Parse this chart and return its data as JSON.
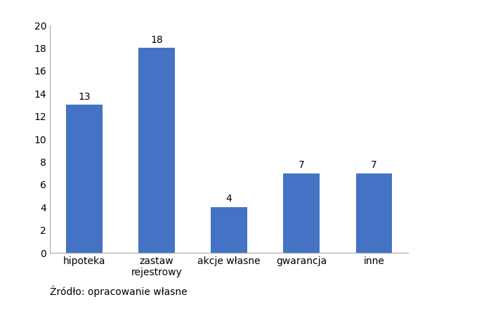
{
  "categories": [
    "hipoteka",
    "zastaw\nrejestrowy",
    "akcje własne",
    "gwarancja",
    "inne"
  ],
  "values": [
    13,
    18,
    4,
    7,
    7
  ],
  "bar_color": "#4472C4",
  "ylim": [
    0,
    20
  ],
  "yticks": [
    0,
    2,
    4,
    6,
    8,
    10,
    12,
    14,
    16,
    18,
    20
  ],
  "value_label_fontsize": 10,
  "tick_label_fontsize": 10,
  "footnote": "Źródło: opracowanie własne",
  "footnote_fontsize": 10,
  "background_color": "#ffffff"
}
